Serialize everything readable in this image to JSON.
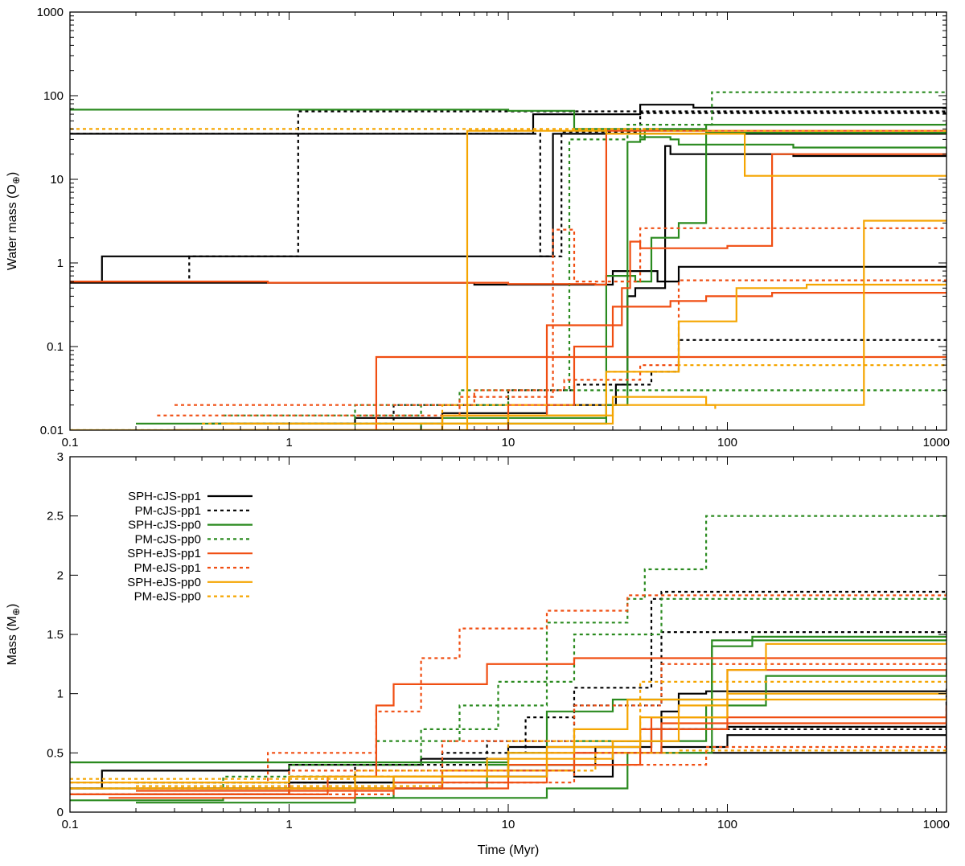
{
  "chart_data": [
    {
      "type": "line",
      "step": true,
      "x_scale": "log",
      "y_scale": "log",
      "xlim": [
        0.1,
        1000
      ],
      "ylim": [
        0.01,
        1000
      ],
      "xlabel": "",
      "ylabel": "Water mass (O",
      "ylabel_sub": "⊕",
      "ylabel_close": ")",
      "x_ticks": [
        "0.1",
        "1",
        "10",
        "100",
        "1000"
      ],
      "y_ticks": [
        "0.01",
        "0.1",
        "1",
        "10",
        "100",
        "1000"
      ],
      "grid": false,
      "series": [
        {
          "style": "SPH-cJS-pp1",
          "x": [
            0.1,
            0.14,
            1.0,
            7.0,
            13.5,
            16.0,
            1000
          ],
          "y": [
            0.6,
            1.2,
            1.2,
            1.2,
            1.2,
            35,
            35
          ]
        },
        {
          "style": "SPH-cJS-pp1",
          "x": [
            0.1,
            13.0,
            40,
            70,
            1000
          ],
          "y": [
            35,
            60,
            78,
            72,
            72
          ]
        },
        {
          "style": "SPH-cJS-pp1",
          "x": [
            0.1,
            7,
            30,
            48,
            60,
            1000
          ],
          "y": [
            0.58,
            0.55,
            0.8,
            0.6,
            0.9,
            0.88
          ]
        },
        {
          "style": "SPH-cJS-pp1",
          "x": [
            0.44,
            2,
            5,
            15,
            31,
            35,
            38,
            52,
            55,
            60,
            200,
            1000
          ],
          "y": [
            0.012,
            0.014,
            0.016,
            0.02,
            0.035,
            0.4,
            0.5,
            25,
            20,
            20,
            19,
            19
          ]
        },
        {
          "style": "PM-cJS-pp1",
          "x": [
            0.1,
            0.35,
            1.1,
            17,
            1000
          ],
          "y": [
            0.6,
            1.2,
            65,
            65,
            65
          ]
        },
        {
          "style": "PM-cJS-pp1",
          "x": [
            0.1,
            14,
            17.5,
            40,
            1000
          ],
          "y": [
            35,
            1.2,
            37,
            62,
            60
          ]
        },
        {
          "style": "PM-cJS-pp1",
          "x": [
            0.5,
            3,
            10,
            20,
            45,
            60,
            1000
          ],
          "y": [
            0.012,
            0.02,
            0.03,
            0.035,
            0.05,
            0.12,
            0.12
          ]
        },
        {
          "style": "SPH-cJS-pp0",
          "x": [
            0.1,
            1,
            10,
            20,
            40,
            55,
            60,
            200,
            1000
          ],
          "y": [
            68,
            68,
            66,
            40,
            32,
            30,
            26,
            24,
            23
          ]
        },
        {
          "style": "SPH-cJS-pp0",
          "x": [
            0.2,
            5,
            28,
            38,
            45,
            60,
            80,
            1000
          ],
          "y": [
            0.012,
            0.014,
            0.7,
            0.6,
            2,
            3,
            45,
            48
          ]
        },
        {
          "style": "SPH-cJS-pp0",
          "x": [
            0.3,
            4,
            28,
            35,
            40,
            42,
            80,
            1000
          ],
          "y": [
            0.01,
            0.012,
            0.02,
            28,
            30,
            40,
            36,
            35
          ]
        },
        {
          "style": "PM-cJS-pp0",
          "x": [
            0.1,
            2,
            6,
            19,
            35,
            85,
            1000
          ],
          "y": [
            0.01,
            0.02,
            0.03,
            30,
            45,
            110,
            112
          ]
        },
        {
          "style": "PM-cJS-pp0",
          "x": [
            0.5,
            4,
            10,
            40,
            1000
          ],
          "y": [
            0.015,
            0.02,
            0.03,
            0.03,
            0.03
          ]
        },
        {
          "style": "SPH-eJS-pp1",
          "x": [
            0.1,
            0.8,
            10,
            25,
            28,
            1000
          ],
          "y": [
            0.6,
            0.58,
            0.56,
            0.55,
            38,
            38
          ]
        },
        {
          "style": "SPH-eJS-pp1",
          "x": [
            0.3,
            2.5,
            10,
            30,
            1000
          ],
          "y": [
            0.01,
            0.075,
            0.075,
            0.075,
            0.075
          ]
        },
        {
          "style": "SPH-eJS-pp1",
          "x": [
            0.5,
            5,
            15,
            33,
            36,
            40,
            100,
            160,
            1000
          ],
          "y": [
            0.01,
            0.015,
            0.18,
            0.5,
            1.8,
            1.5,
            1.6,
            20,
            20
          ]
        },
        {
          "style": "SPH-eJS-pp1",
          "x": [
            0.5,
            10,
            20,
            30,
            55,
            80,
            160,
            1000
          ],
          "y": [
            0.01,
            0.02,
            0.1,
            0.3,
            0.35,
            0.4,
            0.44,
            0.44
          ]
        },
        {
          "style": "PM-eJS-pp1",
          "x": [
            0.25,
            6,
            16,
            20,
            40,
            1000
          ],
          "y": [
            0.015,
            0.025,
            2.5,
            0.6,
            2.6,
            2.6
          ]
        },
        {
          "style": "PM-eJS-pp1",
          "x": [
            0.3,
            7,
            18,
            40,
            60,
            1000
          ],
          "y": [
            0.02,
            0.03,
            0.04,
            0.06,
            0.62,
            0.62
          ]
        },
        {
          "style": "SPH-eJS-pp0",
          "x": [
            0.1,
            6.5,
            28,
            120,
            1000
          ],
          "y": [
            0.01,
            38,
            35,
            11,
            11
          ]
        },
        {
          "style": "SPH-eJS-pp0",
          "x": [
            0.3,
            5,
            28,
            60,
            110,
            230,
            1000
          ],
          "y": [
            0.01,
            0.015,
            0.05,
            0.2,
            0.5,
            0.55,
            0.55
          ]
        },
        {
          "style": "SPH-eJS-pp0",
          "x": [
            0.4,
            5,
            30,
            80,
            200,
            420,
            1000
          ],
          "y": [
            0.01,
            0.012,
            0.025,
            0.02,
            0.02,
            3.2,
            3.2
          ]
        },
        {
          "style": "SPH-eJS-pp0",
          "x": [
            0.5,
            10,
            30,
            88
          ],
          "y": [
            0.012,
            0.015,
            0.02,
            0.018
          ]
        },
        {
          "style": "PM-eJS-pp0",
          "x": [
            0.1,
            1,
            10,
            50,
            1000
          ],
          "y": [
            40,
            40,
            40,
            38,
            38
          ]
        },
        {
          "style": "PM-eJS-pp0",
          "x": [
            0.4,
            5,
            28,
            60,
            1000
          ],
          "y": [
            0.012,
            0.02,
            0.05,
            0.06,
            0.06
          ]
        }
      ]
    },
    {
      "type": "line",
      "step": true,
      "x_scale": "log",
      "xlim": [
        0.1,
        1000
      ],
      "ylim": [
        0,
        3
      ],
      "xlabel": "Time (Myr)",
      "ylabel": "Mass (M",
      "ylabel_sub": "⊕",
      "ylabel_close": ")",
      "x_ticks": [
        "0.1",
        "1",
        "10",
        "100",
        "1000"
      ],
      "y_ticks": [
        "0",
        "0.5",
        "1",
        "1.5",
        "2",
        "2.5",
        "3"
      ],
      "grid": false,
      "legend_position": "top-left",
      "legend": [
        {
          "label": "SPH-cJS-pp1",
          "color": "#000000",
          "dash": "solid"
        },
        {
          "label": "PM-cJS-pp1",
          "color": "#000000",
          "dash": "dotted"
        },
        {
          "label": "SPH-cJS-pp0",
          "color": "#2a8a1f",
          "dash": "solid"
        },
        {
          "label": "PM-cJS-pp0",
          "color": "#2a8a1f",
          "dash": "dotted"
        },
        {
          "label": "SPH-eJS-pp1",
          "color": "#f04e12",
          "dash": "solid"
        },
        {
          "label": "PM-eJS-pp1",
          "color": "#f04e12",
          "dash": "dotted"
        },
        {
          "label": "SPH-eJS-pp0",
          "color": "#f5a500",
          "dash": "solid"
        },
        {
          "label": "PM-eJS-pp0",
          "color": "#f5a500",
          "dash": "dotted"
        }
      ],
      "series": [
        {
          "style": "SPH-cJS-pp1",
          "x": [
            0.1,
            0.14,
            1,
            4,
            10,
            30,
            50,
            60,
            80,
            1000
          ],
          "y": [
            0.2,
            0.35,
            0.4,
            0.45,
            0.55,
            0.6,
            0.85,
            1.0,
            1.02,
            1.02
          ]
        },
        {
          "style": "SPH-cJS-pp1",
          "x": [
            0.1,
            1,
            5,
            15,
            30,
            50,
            100,
            1000
          ],
          "y": [
            0.2,
            0.25,
            0.3,
            0.4,
            0.5,
            0.55,
            0.65,
            0.66
          ]
        },
        {
          "style": "SPH-cJS-pp1",
          "x": [
            0.2,
            1,
            5,
            10,
            25,
            45,
            100,
            1000
          ],
          "y": [
            0.15,
            0.2,
            0.3,
            0.4,
            0.55,
            0.7,
            0.72,
            0.73
          ]
        },
        {
          "style": "SPH-cJS-pp1",
          "x": [
            0.4,
            1,
            3,
            10,
            20,
            30,
            1000
          ],
          "y": [
            0.2,
            0.25,
            0.3,
            0.35,
            0.3,
            0.5,
            0.93
          ]
        },
        {
          "style": "PM-cJS-pp1",
          "x": [
            0.1,
            1,
            5,
            12,
            20,
            45,
            50,
            1000
          ],
          "y": [
            0.15,
            0.3,
            0.5,
            0.8,
            1.05,
            1.8,
            1.86,
            1.86
          ]
        },
        {
          "style": "PM-cJS-pp1",
          "x": [
            0.2,
            2,
            8,
            20,
            50,
            1000
          ],
          "y": [
            0.25,
            0.4,
            0.6,
            0.9,
            1.52,
            1.52
          ]
        },
        {
          "style": "PM-cJS-pp1",
          "x": [
            0.3,
            3,
            10,
            40,
            1000
          ],
          "y": [
            0.2,
            0.3,
            0.5,
            0.7,
            1.06
          ]
        },
        {
          "style": "SPH-cJS-pp0",
          "x": [
            0.1,
            1,
            10,
            15,
            30,
            85,
            130,
            1000
          ],
          "y": [
            0.42,
            0.42,
            0.5,
            0.85,
            0.95,
            1.4,
            1.48,
            1.49
          ]
        },
        {
          "style": "SPH-cJS-pp0",
          "x": [
            0.1,
            0.5,
            3,
            8,
            20,
            80,
            150,
            1000
          ],
          "y": [
            0.1,
            0.12,
            0.2,
            0.4,
            0.6,
            0.9,
            1.15,
            1.2
          ]
        },
        {
          "style": "SPH-cJS-pp0",
          "x": [
            0.2,
            2,
            15,
            35,
            85,
            1000
          ],
          "y": [
            0.08,
            0.12,
            0.2,
            0.5,
            1.45,
            1.46
          ]
        },
        {
          "style": "PM-cJS-pp0",
          "x": [
            0.1,
            0.5,
            2.5,
            6,
            15,
            35,
            42,
            80,
            1000
          ],
          "y": [
            0.2,
            0.3,
            0.6,
            0.9,
            1.6,
            1.8,
            2.05,
            2.5,
            2.51
          ]
        },
        {
          "style": "PM-cJS-pp0",
          "x": [
            0.2,
            1,
            4,
            9,
            20,
            50,
            1000
          ],
          "y": [
            0.25,
            0.4,
            0.7,
            1.1,
            1.5,
            1.8,
            1.85
          ]
        },
        {
          "style": "SPH-eJS-pp1",
          "x": [
            0.1,
            1.5,
            2.5,
            3,
            8,
            20,
            30,
            40,
            1000
          ],
          "y": [
            0.15,
            0.3,
            0.9,
            1.08,
            1.25,
            1.3,
            1.3,
            1.3,
            1.3
          ]
        },
        {
          "style": "SPH-eJS-pp1",
          "x": [
            0.1,
            1,
            5,
            20,
            45,
            100,
            1000
          ],
          "y": [
            0.15,
            0.2,
            0.35,
            0.5,
            0.8,
            1.2,
            1.2
          ]
        },
        {
          "style": "SPH-eJS-pp1",
          "x": [
            0.15,
            2,
            10,
            40,
            100,
            1000
          ],
          "y": [
            0.12,
            0.2,
            0.4,
            0.7,
            0.8,
            0.83
          ]
        },
        {
          "style": "SPH-eJS-pp1",
          "x": [
            0.2,
            3,
            15,
            50,
            1000
          ],
          "y": [
            0.18,
            0.25,
            0.5,
            0.75,
            0.9
          ]
        },
        {
          "style": "PM-eJS-pp1",
          "x": [
            0.1,
            0.8,
            2.5,
            4,
            6,
            15,
            35,
            1000
          ],
          "y": [
            0.25,
            0.5,
            0.85,
            1.3,
            1.55,
            1.7,
            1.83,
            1.83
          ]
        },
        {
          "style": "PM-eJS-pp1",
          "x": [
            0.2,
            1,
            5,
            20,
            50,
            1000
          ],
          "y": [
            0.2,
            0.35,
            0.6,
            0.9,
            1.25,
            1.26
          ]
        },
        {
          "style": "PM-eJS-pp1",
          "x": [
            0.3,
            3,
            20,
            80,
            1000
          ],
          "y": [
            0.15,
            0.25,
            0.4,
            0.55,
            0.57
          ]
        },
        {
          "style": "SPH-eJS-pp0",
          "x": [
            0.1,
            2,
            10,
            20,
            35,
            100,
            150,
            1000
          ],
          "y": [
            0.2,
            0.3,
            0.5,
            0.7,
            0.95,
            1.2,
            1.42,
            1.43
          ]
        },
        {
          "style": "SPH-eJS-pp0",
          "x": [
            0.1,
            1,
            8,
            30,
            60,
            100,
            1000
          ],
          "y": [
            0.25,
            0.3,
            0.45,
            0.6,
            0.9,
            1.0,
            1.0
          ]
        },
        {
          "style": "SPH-eJS-pp0",
          "x": [
            0.2,
            3,
            15,
            40,
            100,
            1000
          ],
          "y": [
            0.2,
            0.3,
            0.55,
            0.8,
            0.95,
            0.97
          ]
        },
        {
          "style": "PM-eJS-pp0",
          "x": [
            0.1,
            2,
            10,
            40,
            1000
          ],
          "y": [
            0.28,
            0.35,
            0.6,
            1.1,
            1.1
          ]
        },
        {
          "style": "PM-eJS-pp0",
          "x": [
            0.2,
            5,
            25,
            60,
            1000
          ],
          "y": [
            0.22,
            0.35,
            0.5,
            0.52,
            0.52
          ]
        }
      ]
    }
  ],
  "styles": {
    "SPH-cJS-pp1": {
      "color": "#000000",
      "dash": "solid"
    },
    "PM-cJS-pp1": {
      "color": "#000000",
      "dash": "dotted"
    },
    "SPH-cJS-pp0": {
      "color": "#2a8a1f",
      "dash": "solid"
    },
    "PM-cJS-pp0": {
      "color": "#2a8a1f",
      "dash": "dotted"
    },
    "SPH-eJS-pp1": {
      "color": "#f04e12",
      "dash": "solid"
    },
    "PM-eJS-pp1": {
      "color": "#f04e12",
      "dash": "dotted"
    },
    "SPH-eJS-pp0": {
      "color": "#f5a500",
      "dash": "solid"
    },
    "PM-eJS-pp0": {
      "color": "#f5a500",
      "dash": "dotted"
    }
  }
}
